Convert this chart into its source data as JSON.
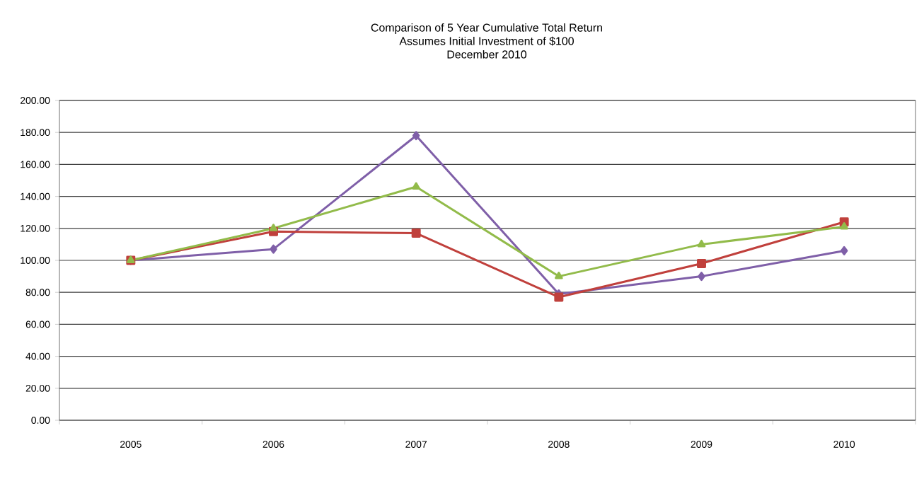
{
  "chart_data": {
    "type": "line",
    "title": "Comparison of 5 Year Cumulative  Total Return",
    "subtitle": "Assumes Initial Investment of $100",
    "annotations": [
      "December 2010"
    ],
    "categories": [
      "2005",
      "2006",
      "2007",
      "2008",
      "2009",
      "2010"
    ],
    "series": [
      {
        "color": "#7f5fa8",
        "marker": "diamond",
        "values": [
          100,
          107,
          178,
          79,
          90,
          106
        ]
      },
      {
        "color": "#c0403c",
        "marker": "square",
        "values": [
          100,
          118,
          117,
          77,
          98,
          124
        ]
      },
      {
        "color": "#92bb4a",
        "marker": "triangle",
        "values": [
          100,
          120,
          146,
          90,
          110,
          121
        ]
      }
    ],
    "ylim": [
      0,
      200
    ],
    "yticks": [
      {
        "value": 0,
        "label": "0.00"
      },
      {
        "value": 20,
        "label": "20.00"
      },
      {
        "value": 40,
        "label": "40.00"
      },
      {
        "value": 60,
        "label": "60.00"
      },
      {
        "value": 80,
        "label": "80.00"
      },
      {
        "value": 100,
        "label": "100.00"
      },
      {
        "value": 120,
        "label": "120.00"
      },
      {
        "value": 140,
        "label": "140.00"
      },
      {
        "value": 160,
        "label": "160.00"
      },
      {
        "value": 180,
        "label": "180.00"
      },
      {
        "value": 200,
        "label": "200.00"
      }
    ],
    "grid": "y",
    "line_style": "solid"
  }
}
